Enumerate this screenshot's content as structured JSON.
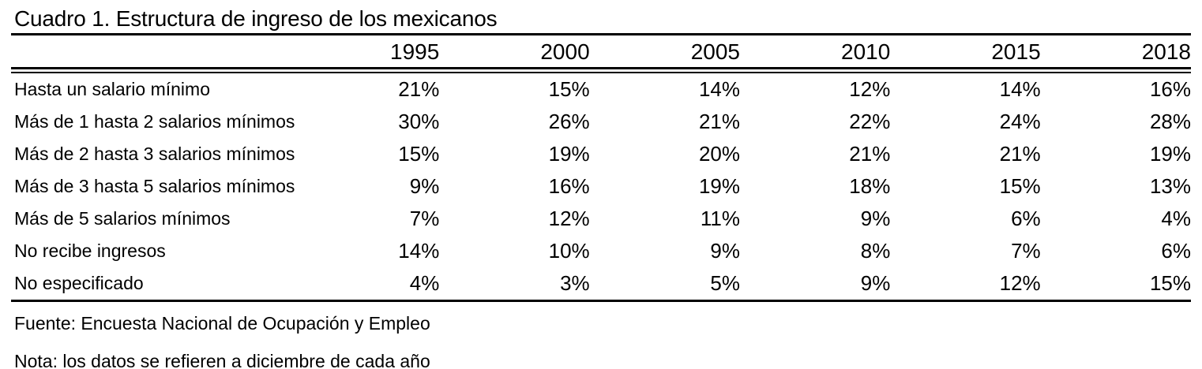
{
  "title": "Cuadro 1. Estructura de ingreso de los mexicanos",
  "table": {
    "column_headers": [
      "1995",
      "2000",
      "2005",
      "2010",
      "2015",
      "2018"
    ],
    "rows": [
      {
        "label": "Hasta un salario mínimo",
        "values": [
          "21%",
          "15%",
          "14%",
          "12%",
          "14%",
          "16%"
        ]
      },
      {
        "label": "Más de 1 hasta 2 salarios mínimos",
        "values": [
          "30%",
          "26%",
          "21%",
          "22%",
          "24%",
          "28%"
        ]
      },
      {
        "label": "Más de 2 hasta 3 salarios mínimos",
        "values": [
          "15%",
          "19%",
          "20%",
          "21%",
          "21%",
          "19%"
        ]
      },
      {
        "label": "Más de 3 hasta 5 salarios mínimos",
        "values": [
          "9%",
          "16%",
          "19%",
          "18%",
          "15%",
          "13%"
        ]
      },
      {
        "label": "Más de 5 salarios mínimos",
        "values": [
          "7%",
          "12%",
          "11%",
          "9%",
          "6%",
          "4%"
        ]
      },
      {
        "label": "No recibe ingresos",
        "values": [
          "14%",
          "10%",
          "9%",
          "8%",
          "7%",
          "6%"
        ]
      },
      {
        "label": "No especificado",
        "values": [
          "4%",
          "3%",
          "5%",
          "9%",
          "12%",
          "15%"
        ]
      }
    ]
  },
  "footer": {
    "source": "Fuente: Encuesta Nacional de Ocupación y Empleo",
    "note": "Nota: los datos se refieren a diciembre de cada año"
  },
  "colors": {
    "text": "#000000",
    "background": "#ffffff",
    "rule": "#000000"
  }
}
